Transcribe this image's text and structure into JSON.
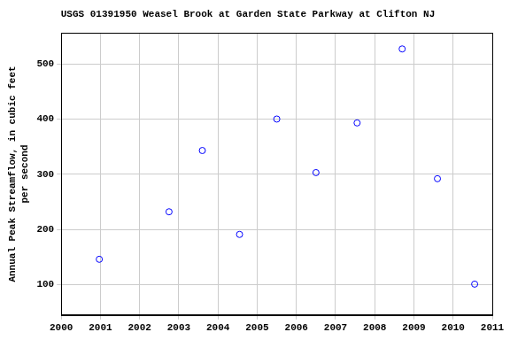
{
  "chart_data": {
    "type": "scatter",
    "title": "USGS 01391950 Weasel Brook at Garden State Parkway at Clifton NJ",
    "y_label": [
      "Annual Peak Streamflow, in cubic feet",
      "per second"
    ],
    "x": [
      2000.97,
      2002.75,
      2003.6,
      2004.55,
      2005.5,
      2006.5,
      2007.55,
      2008.7,
      2009.6,
      2010.55
    ],
    "values": [
      146,
      232,
      343,
      191,
      400,
      303,
      393,
      527,
      292,
      101
    ],
    "color": "#0000ff",
    "marker": "circle",
    "xlim": [
      2000,
      2011
    ],
    "xticks": [
      2000,
      2001,
      2002,
      2003,
      2004,
      2005,
      2006,
      2007,
      2008,
      2009,
      2010,
      2011
    ],
    "ylim": [
      45,
      556
    ],
    "yticks": [
      100,
      200,
      300,
      400,
      500
    ],
    "grid": true
  }
}
